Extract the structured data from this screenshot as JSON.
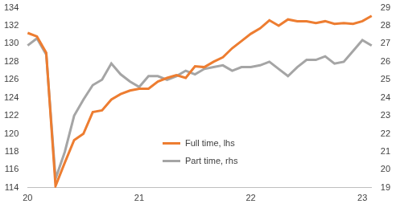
{
  "chart_data": {
    "type": "line",
    "categories": [
      "20",
      null,
      null,
      null,
      null,
      null,
      null,
      null,
      null,
      null,
      null,
      null,
      "21",
      null,
      null,
      null,
      null,
      null,
      null,
      null,
      null,
      null,
      null,
      null,
      "22",
      null,
      null,
      null,
      null,
      null,
      null,
      null,
      null,
      null,
      null,
      null,
      "23",
      null
    ],
    "series": [
      {
        "name": "Full time, lhs",
        "color": "#ed7d31",
        "axis": "y",
        "values": [
          131.2,
          130.8,
          129.0,
          114.2,
          116.8,
          119.3,
          120.0,
          122.4,
          122.6,
          123.8,
          124.4,
          124.8,
          125.0,
          125.0,
          125.8,
          126.2,
          126.5,
          126.2,
          127.5,
          127.4,
          128.0,
          128.5,
          129.5,
          130.3,
          131.1,
          131.7,
          132.6,
          132.0,
          132.7,
          132.5,
          132.5,
          132.3,
          132.5,
          132.2,
          132.3,
          132.2,
          132.5,
          133.1
        ]
      },
      {
        "name": "Part time, rhs",
        "color": "#a5a5a5",
        "axis": "y2",
        "values": [
          26.9,
          27.3,
          26.4,
          19.5,
          21.0,
          23.0,
          23.9,
          24.7,
          25.0,
          25.9,
          25.3,
          24.9,
          24.6,
          25.2,
          25.2,
          25.0,
          25.2,
          25.5,
          25.3,
          25.6,
          25.7,
          25.8,
          25.5,
          25.7,
          25.7,
          25.8,
          26.0,
          25.6,
          25.2,
          25.7,
          26.1,
          26.1,
          26.3,
          25.9,
          26.0,
          26.6,
          27.2,
          26.9
        ]
      }
    ],
    "ylim": [
      114,
      134
    ],
    "yticks": [
      114,
      116,
      118,
      120,
      122,
      124,
      126,
      128,
      130,
      132,
      134
    ],
    "y2lim": [
      19,
      29
    ],
    "y2ticks": [
      19,
      20,
      21,
      22,
      23,
      24,
      25,
      26,
      27,
      28,
      29
    ],
    "grid": false,
    "legend": "center"
  }
}
